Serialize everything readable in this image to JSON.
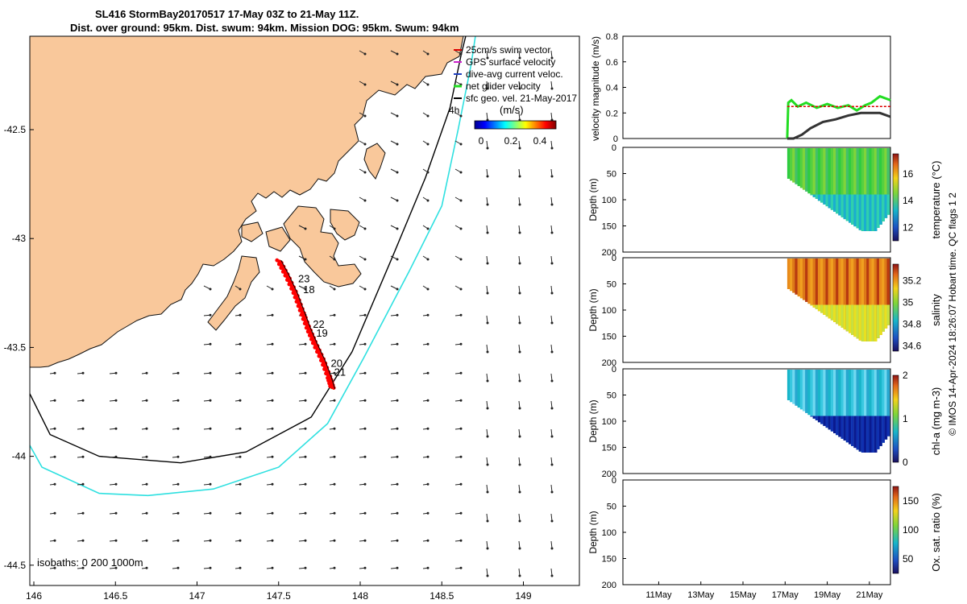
{
  "title": {
    "line1": "SL416 StormBay20170517 17-May 03Z to 21-May 11Z.",
    "line2": "Dist. over ground: 95km. Dist. swum: 94km. Mission DOG: 95km. Swum: 94km"
  },
  "footer": "© IMOS 14-Apr-2024 18:26:07 Hobart time. QC flags 1  2",
  "colors": {
    "land": "#f9c89b",
    "isobath_200": "#000000",
    "isobath_1000": "#2ee0e0",
    "track_red": "#ff0000",
    "track_green": "#22dd22",
    "current_black": "#222222",
    "swim_red_dashed": "#dd0000"
  },
  "chart_data": [
    {
      "type": "scatter",
      "name": "map",
      "x_ticks": [
        "146",
        "146.5",
        "147",
        "147.5",
        "148",
        "148.5",
        "149"
      ],
      "y_ticks": [
        "-42.5",
        "-43",
        "-43.5",
        "-44",
        "-44.5"
      ],
      "xlim": [
        145.95,
        149.35
      ],
      "ylim": [
        -44.6,
        -42.0
      ],
      "legend": {
        "placement": "top-right",
        "entries": [
          "25cm/s swim vector",
          "GPS surface velocity",
          "dive-avg current veloc.",
          "net glider velocity",
          "sfc geo. vel. 21-May-2017"
        ],
        "colorbar_title": "(m/s)",
        "colorbar_ticks": [
          "0",
          "0.2",
          "0.4"
        ],
        "hour_label": "4h"
      },
      "isobath_label": "isobaths: 0   200  1000m",
      "day_labels": [
        {
          "text": "23",
          "lon": 147.62,
          "lat": -43.2
        },
        {
          "text": "18",
          "lon": 147.65,
          "lat": -43.25
        },
        {
          "text": "22",
          "lon": 147.71,
          "lat": -43.41
        },
        {
          "text": "19",
          "lon": 147.73,
          "lat": -43.45
        },
        {
          "text": "20",
          "lon": 147.82,
          "lat": -43.59
        },
        {
          "text": "21",
          "lon": 147.84,
          "lat": -43.63
        }
      ],
      "glider_track": [
        [
          147.5,
          -43.1
        ],
        [
          147.55,
          -43.17
        ],
        [
          147.6,
          -43.25
        ],
        [
          147.64,
          -43.33
        ],
        [
          147.68,
          -43.41
        ],
        [
          147.72,
          -43.48
        ],
        [
          147.77,
          -43.56
        ],
        [
          147.81,
          -43.64
        ],
        [
          147.83,
          -43.69
        ]
      ],
      "isobath_200": [
        [
          145.9,
          -43.6
        ],
        [
          146.1,
          -43.9
        ],
        [
          146.4,
          -44.0
        ],
        [
          146.9,
          -44.03
        ],
        [
          147.3,
          -43.98
        ],
        [
          147.7,
          -43.82
        ],
        [
          147.95,
          -43.52
        ],
        [
          148.2,
          -43.08
        ],
        [
          148.4,
          -42.72
        ],
        [
          148.55,
          -42.4
        ],
        [
          148.62,
          -42.15
        ],
        [
          148.67,
          -42.0
        ]
      ],
      "isobath_1000": [
        [
          145.9,
          -43.85
        ],
        [
          146.05,
          -44.05
        ],
        [
          146.4,
          -44.17
        ],
        [
          146.7,
          -44.18
        ],
        [
          147.1,
          -44.15
        ],
        [
          147.5,
          -44.05
        ],
        [
          147.8,
          -43.85
        ],
        [
          148.02,
          -43.55
        ],
        [
          148.3,
          -43.15
        ],
        [
          148.5,
          -42.85
        ],
        [
          148.6,
          -42.5
        ],
        [
          148.68,
          -42.2
        ],
        [
          148.72,
          -42.0
        ]
      ]
    },
    {
      "type": "line",
      "name": "velocity",
      "ylabel": "velocity magnitude (m/s)",
      "ylim": [
        0,
        0.8
      ],
      "y_ticks": [
        "0",
        "0.2",
        "0.4",
        "0.6",
        "0.8"
      ],
      "xlim": [
        9.3,
        22.0
      ],
      "series": [
        {
          "values_x": [
            17.1,
            17.15,
            17.3,
            17.6,
            18.0,
            18.5,
            19.0,
            19.5,
            20.0,
            20.4,
            20.8,
            21.1,
            21.5,
            22.0
          ],
          "values_y": [
            0.0,
            0.28,
            0.3,
            0.25,
            0.28,
            0.24,
            0.27,
            0.24,
            0.26,
            0.22,
            0.26,
            0.28,
            0.33,
            0.3
          ]
        },
        {
          "values_x": [
            17.1,
            17.4,
            17.8,
            18.2,
            18.8,
            19.4,
            20.0,
            20.6,
            21.0,
            21.5,
            22.0
          ],
          "values_y": [
            0.0,
            0.0,
            0.03,
            0.08,
            0.13,
            0.15,
            0.18,
            0.2,
            0.2,
            0.2,
            0.17
          ]
        },
        {
          "values_x": [
            17.1,
            22.0
          ],
          "values_y": [
            0.25,
            0.25
          ]
        }
      ]
    },
    {
      "type": "heatmap",
      "name": "temperature",
      "ylabel": "Depth (m)",
      "colorbar_label": "temperature (°C)",
      "colorbar_ticks": [
        "12",
        "14",
        "16"
      ],
      "clim": [
        11,
        17.5
      ],
      "y_ticks": [
        "0",
        "50",
        "100",
        "150",
        "200"
      ],
      "ylim": [
        0,
        200
      ]
    },
    {
      "type": "heatmap",
      "name": "salinity",
      "ylabel": "Depth (m)",
      "colorbar_label": "salinity",
      "colorbar_ticks": [
        "34.6",
        "34.8",
        "35",
        "35.2"
      ],
      "clim": [
        34.55,
        35.35
      ],
      "y_ticks": [
        "0",
        "50",
        "100",
        "150",
        "200"
      ],
      "ylim": [
        0,
        200
      ]
    },
    {
      "type": "heatmap",
      "name": "chl-a",
      "ylabel": "Depth (m)",
      "colorbar_label": "chl-a (mg m-3)",
      "colorbar_ticks": [
        "0",
        "1",
        "2"
      ],
      "clim": [
        0,
        2
      ],
      "y_ticks": [
        "0",
        "50",
        "100",
        "150",
        "200"
      ],
      "ylim": [
        0,
        200
      ]
    },
    {
      "type": "heatmap",
      "name": "oxygen",
      "ylabel": "Depth (m)",
      "colorbar_label": "Ox. sat. ratio (%)",
      "colorbar_ticks": [
        "50",
        "100",
        "150"
      ],
      "clim": [
        25,
        175
      ],
      "y_ticks": [
        "0",
        "50",
        "100",
        "150",
        "200"
      ],
      "ylim": [
        0,
        200
      ],
      "x_ticks": [
        "11May",
        "13May",
        "15May",
        "17May",
        "19May",
        "21May"
      ]
    }
  ]
}
